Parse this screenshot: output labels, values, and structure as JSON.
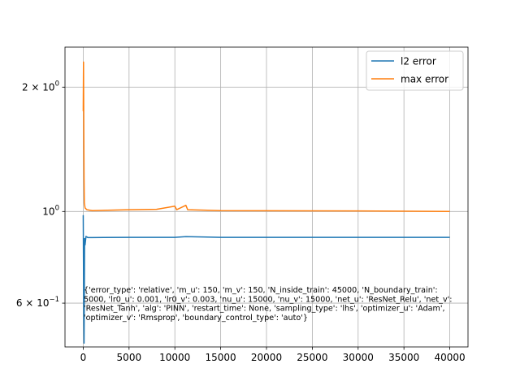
{
  "chart_data": {
    "type": "line",
    "title": "",
    "xlabel": "",
    "ylabel": "",
    "xlim": [
      -1990,
      41990
    ],
    "ylim": [
      0.47,
      2.5
    ],
    "yscale": "log",
    "grid": true,
    "legend_position": "top-right",
    "x_ticks": [
      0,
      5000,
      10000,
      15000,
      20000,
      25000,
      30000,
      35000,
      40000
    ],
    "y_tick_labels": [
      {
        "value": 2.0,
        "mantissa": "2",
        "exponent": "0"
      },
      {
        "value": 1.0,
        "mantissa": "",
        "exponent": "0"
      },
      {
        "value": 0.6,
        "mantissa": "6",
        "exponent": "−1"
      }
    ],
    "series": [
      {
        "name": "l2 error",
        "color": "#1f77b4",
        "points": [
          [
            0,
            0.98
          ],
          [
            30,
            0.72
          ],
          [
            60,
            0.55
          ],
          [
            90,
            0.48
          ],
          [
            120,
            0.62
          ],
          [
            150,
            0.86
          ],
          [
            200,
            0.83
          ],
          [
            300,
            0.87
          ],
          [
            500,
            0.865
          ],
          [
            1000,
            0.865
          ],
          [
            5000,
            0.866
          ],
          [
            10000,
            0.866
          ],
          [
            11200,
            0.869
          ],
          [
            15000,
            0.866
          ],
          [
            20000,
            0.866
          ],
          [
            30000,
            0.866
          ],
          [
            40000,
            0.866
          ]
        ]
      },
      {
        "name": "max error",
        "color": "#ff7f0e",
        "points": [
          [
            0,
            1.75
          ],
          [
            30,
            2.3
          ],
          [
            60,
            1.6
          ],
          [
            90,
            1.2
          ],
          [
            120,
            1.05
          ],
          [
            200,
            1.02
          ],
          [
            400,
            1.01
          ],
          [
            1000,
            1.005
          ],
          [
            5000,
            1.01
          ],
          [
            8000,
            1.012
          ],
          [
            10000,
            1.03
          ],
          [
            10200,
            1.01
          ],
          [
            11200,
            1.035
          ],
          [
            11400,
            1.01
          ],
          [
            15000,
            1.005
          ],
          [
            20000,
            1.004
          ],
          [
            30000,
            1.003
          ],
          [
            40000,
            1.0
          ]
        ]
      }
    ],
    "annotation": [
      "{'error_type': 'relative', 'm_u': 150, 'm_v': 150, 'N_inside_train': 45000, 'N_boundary_train':",
      "5000, 'lr0_u': 0.001, 'lr0_v': 0.003, 'nu_u': 15000, 'nu_v': 15000, 'net_u': 'ResNet_Relu', 'net_v':",
      "'ResNet_Tanh', 'alg': 'PINN', 'restart_time': None, 'sampling_type': 'lhs', 'optimizer_u': 'Adam',",
      "'optimizer_v': 'Rmsprop', 'boundary_control_type': 'auto'}"
    ]
  }
}
